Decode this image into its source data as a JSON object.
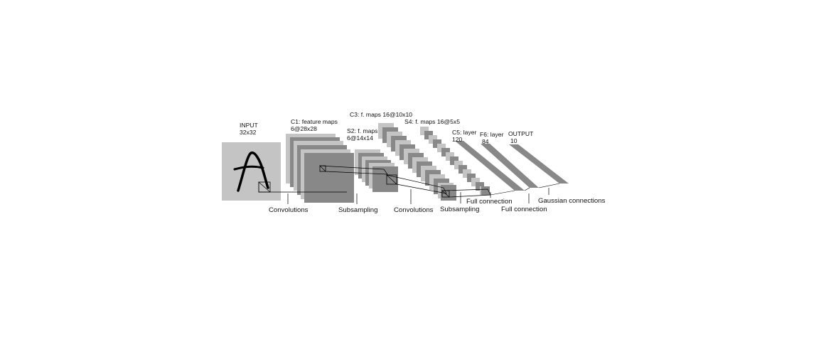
{
  "layers": {
    "input": {
      "name": "INPUT",
      "size": "32x32"
    },
    "c1": {
      "name": "C1: feature maps",
      "size": "6@28x28"
    },
    "s2": {
      "name": "S2: f. maps",
      "size": "6@14x14"
    },
    "c3": {
      "name": "C3: f. maps 16@10x10"
    },
    "s4": {
      "name": "S4: f. maps 16@5x5"
    },
    "c5": {
      "name": "C5: layer",
      "size": "120"
    },
    "f6": {
      "name": "F6: layer",
      "size": "84"
    },
    "output": {
      "name": "OUTPUT",
      "size": "10"
    }
  },
  "operations": {
    "conv1": "Convolutions",
    "sub1": "Subsampling",
    "conv2": "Convolutions",
    "sub2": "Subsampling",
    "full1": "Full connection",
    "full2": "Full connection",
    "gauss": "Gaussian connections"
  },
  "colors": {
    "light": "#c4c4c4",
    "dark": "#888888",
    "stroke": "#000000"
  }
}
